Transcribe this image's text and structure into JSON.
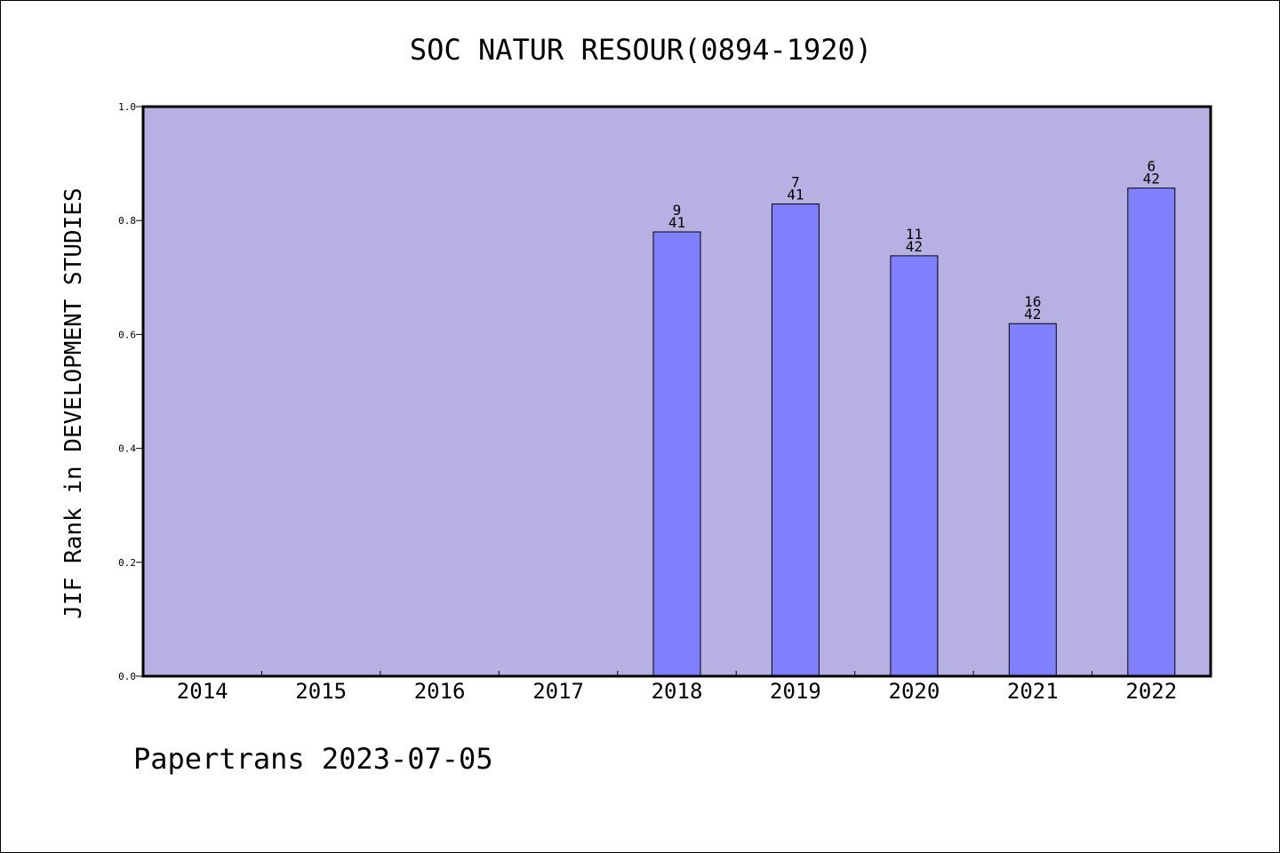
{
  "chart_data": {
    "type": "bar",
    "title": "SOC NATUR RESOUR(0894-1920)",
    "xlabel": "",
    "ylabel": "JIF Rank in DEVELOPMENT STUDIES",
    "ylim": [
      0,
      1
    ],
    "yticks": [
      "0.0",
      "0.2",
      "0.4",
      "0.6",
      "0.8",
      "1.0"
    ],
    "grid": false,
    "categories": [
      "2014",
      "2015",
      "2016",
      "2017",
      "2018",
      "2019",
      "2020",
      "2021",
      "2022"
    ],
    "values": [
      null,
      null,
      null,
      null,
      0.78,
      0.829,
      0.738,
      0.619,
      0.857
    ],
    "labels": [
      null,
      null,
      null,
      null,
      {
        "rank": "9",
        "total": "41"
      },
      {
        "rank": "7",
        "total": "41"
      },
      {
        "rank": "11",
        "total": "42"
      },
      {
        "rank": "16",
        "total": "42"
      },
      {
        "rank": "6",
        "total": "42"
      }
    ],
    "colors": {
      "plot_background": "#b6b0e3",
      "bar_fill": "#8080ff",
      "bar_stroke": "#000000"
    }
  },
  "footer": {
    "text": "Papertrans 2023-07-05"
  }
}
